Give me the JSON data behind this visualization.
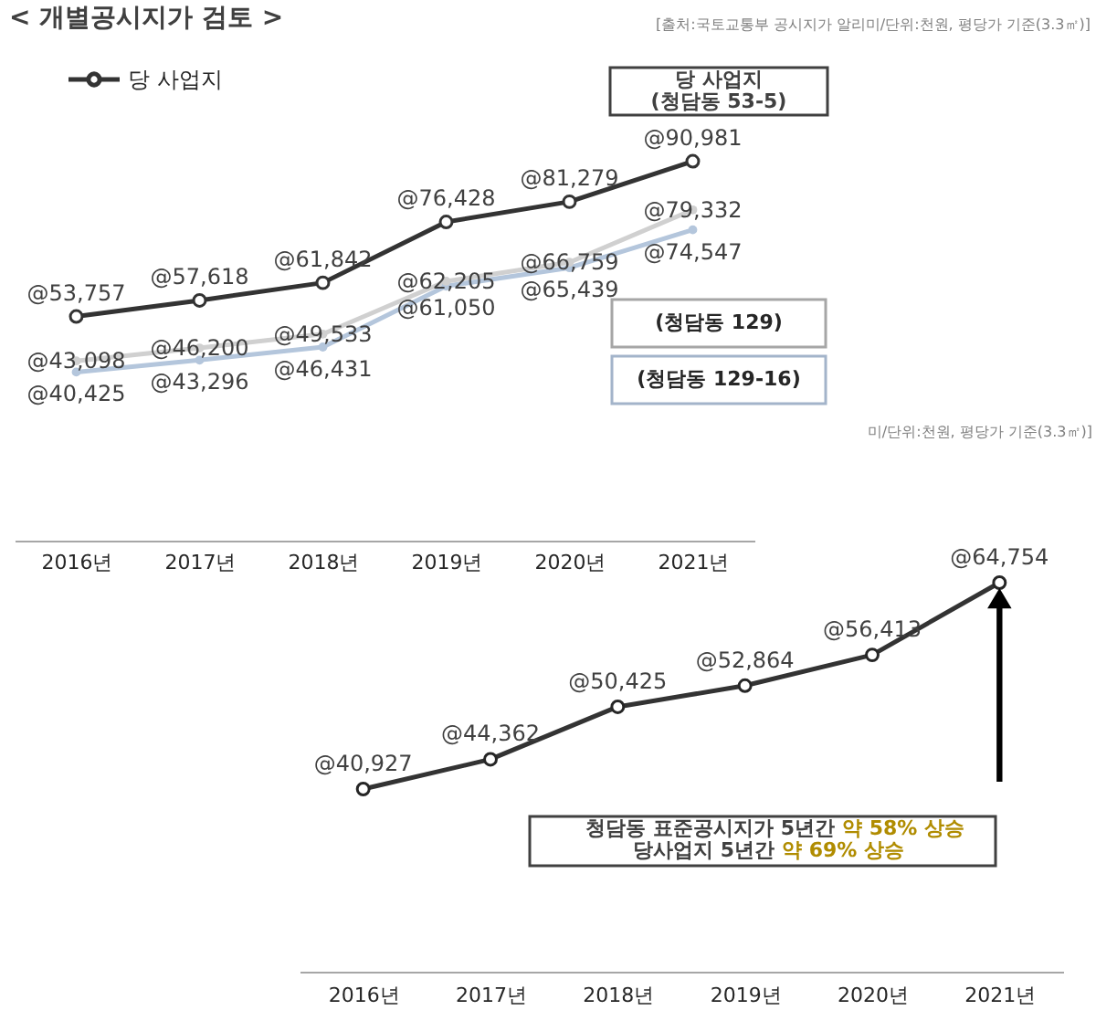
{
  "chart_data": [
    {
      "type": "line",
      "title": "< 개별공시지가 검토 >",
      "annotations": [
        "[출처:국토교통부 공시지가 알리미/단위:천원, 평당가 기준(3.3㎡)]",
        "당 사업지\n(청담동 53-5)",
        "(청담동 129)",
        "(청담동 129-16)",
        "미/단위:천원, 평당가 기준(3.3㎡)]"
      ],
      "categories": [
        "2016년",
        "2017년",
        "2018년",
        "2019년",
        "2020년",
        "2021년"
      ],
      "series": [
        {
          "name": "당 사업지",
          "color": "#333333",
          "values": [
            53757,
            57618,
            61842,
            76428,
            81279,
            90981
          ],
          "value_labels": [
            "@53,757",
            "@57,618",
            "@61,842",
            "@76,428",
            "@81,279",
            "@90,981"
          ]
        },
        {
          "color": "#b4c6dc",
          "values": [
            40425,
            43296,
            46431,
            61050,
            65439,
            74547
          ],
          "value_labels": [
            "@40,425",
            "@43,296",
            "@46,431",
            "@61,050",
            "@65,439",
            "@74,547"
          ]
        },
        {
          "color": "#d0d0d0",
          "values": [
            43098,
            46200,
            49533,
            62205,
            66759,
            79332
          ],
          "value_labels": [
            "@43,098",
            "@46,200",
            "@49,533",
            "@62,205",
            "@66,759",
            "@79,332"
          ]
        }
      ],
      "tick_labels": "x",
      "legend": "top left",
      "marker": "circle"
    },
    {
      "type": "line",
      "categories": [
        "2016년",
        "2017년",
        "2018년",
        "2019년",
        "2020년",
        "2021년"
      ],
      "color": "#262626",
      "values": [
        40927,
        44362,
        50425,
        52864,
        56413,
        64754
      ],
      "value_labels": [
        "@40,927",
        "@44,362",
        "@50,425",
        "@52,864",
        "@56,413",
        "@64,754"
      ],
      "tick_labels": "x",
      "marker": "circle",
      "annotations": [
        "청담동 표준공시지가 5년간",
        "약 58% 상승",
        "당사업지 5년간",
        "약 69% 상승"
      ]
    }
  ]
}
